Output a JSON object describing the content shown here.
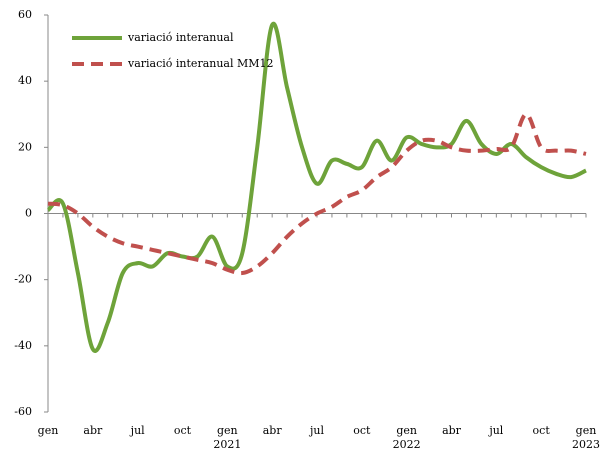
{
  "chart_data": {
    "type": "line",
    "categories": [
      "gen",
      null,
      null,
      "abr",
      null,
      null,
      "jul",
      null,
      null,
      "oct",
      null,
      null,
      "gen 2021",
      null,
      null,
      "abr",
      null,
      null,
      "jul",
      null,
      null,
      "oct",
      null,
      null,
      "gen 2022",
      null,
      null,
      "abr",
      null,
      null,
      "jul",
      null,
      null,
      "oct",
      null,
      null,
      "gen 2023"
    ],
    "series": [
      {
        "name": "variació interanual",
        "color": "#6ea33a",
        "dash": false,
        "values": [
          1,
          3,
          -18,
          -41,
          -33,
          -18,
          -15,
          -16,
          -12,
          -13,
          -13,
          -7,
          -16,
          -12,
          20,
          57,
          38,
          20,
          9,
          16,
          15,
          14,
          22,
          16,
          23,
          21,
          20,
          21,
          28,
          21,
          18,
          21,
          17,
          14,
          12,
          11,
          13
        ]
      },
      {
        "name": "variació interanual MM12",
        "color": "#c0504d",
        "dash": true,
        "values": [
          3,
          2.5,
          0,
          -4,
          -7,
          -9,
          -10,
          -11,
          -12,
          -13,
          -14,
          -15,
          -17,
          -18,
          -16,
          -12,
          -7,
          -3,
          0,
          2,
          5,
          7,
          11,
          14,
          19,
          22,
          22,
          20,
          19,
          19,
          19.5,
          20,
          30,
          20,
          19,
          19,
          18
        ]
      }
    ],
    "ylim": [
      -60,
      60
    ],
    "yticks": [
      -60,
      -40,
      -20,
      0,
      20,
      40,
      60
    ],
    "grid": false,
    "legend": "top-left"
  }
}
